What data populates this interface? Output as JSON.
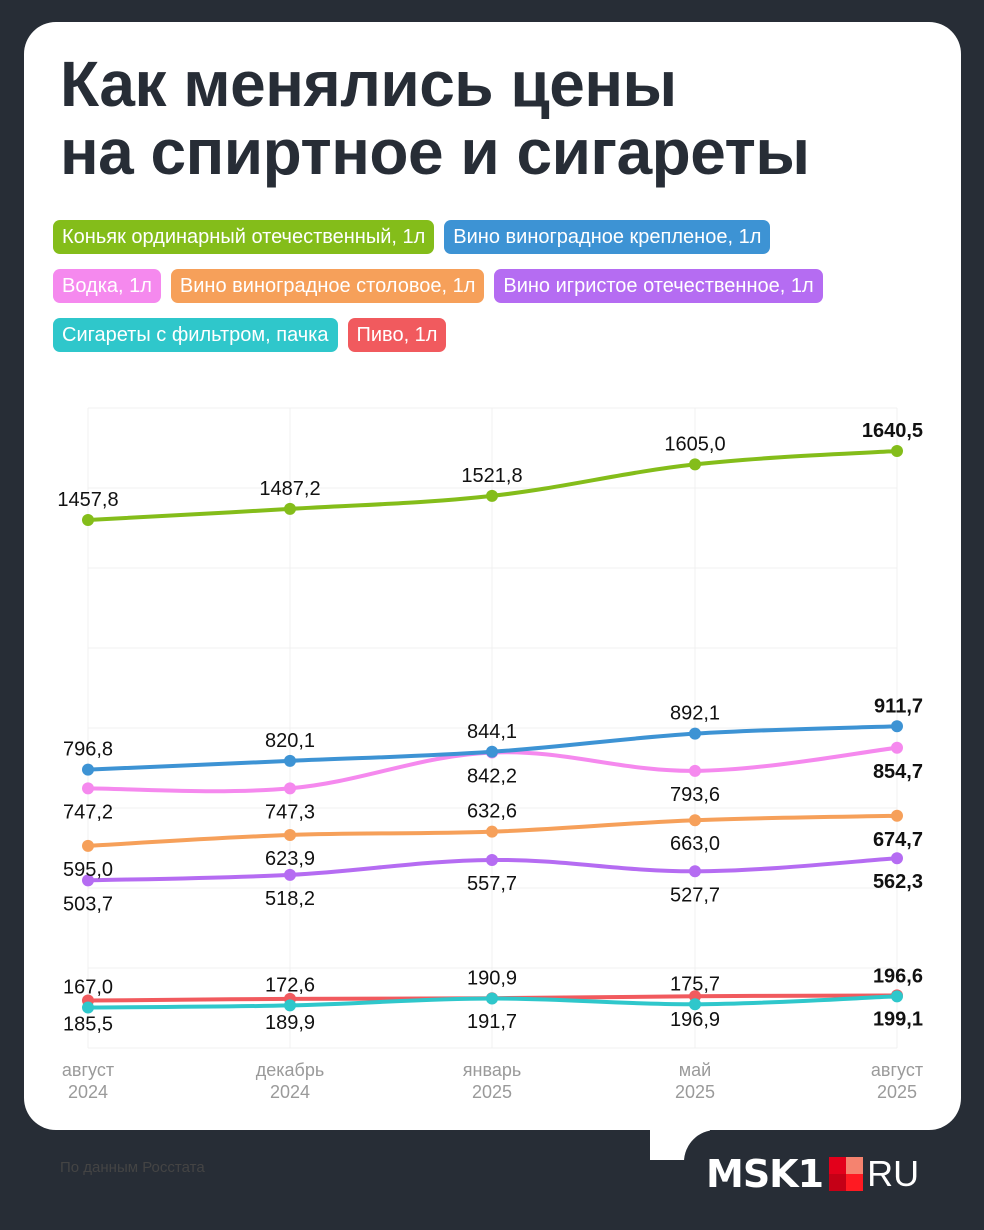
{
  "title_line1": "Как менялись цены",
  "title_line2": "на спиртное и сигареты",
  "legend": [
    {
      "label": "Коньяк ординарный отечественный, 1л",
      "color": "#84bd1a"
    },
    {
      "label": "Вино виноградное крепленое, 1л",
      "color": "#3d93d4"
    },
    {
      "label": "Водка, 1л",
      "color": "#f589ee"
    },
    {
      "label": "Вино виноградное столовое, 1л",
      "color": "#f6a05a"
    },
    {
      "label": "Вино игристое отечественное, 1л",
      "color": "#b56cf2"
    },
    {
      "label": "Сигареты с фильтром, пачка",
      "color": "#2fc7cb"
    },
    {
      "label": "Пиво, 1л",
      "color": "#f15a5e"
    }
  ],
  "source": "По данным Росстата",
  "logo": {
    "main": "MSK1",
    "suffix": "RU"
  },
  "chart_data": {
    "type": "line",
    "title": "Как менялись цены на спиртное и сигареты",
    "categories": [
      "август 2024",
      "декабрь 2024",
      "январь 2025",
      "май 2025",
      "август 2025"
    ],
    "x_ticks": [
      [
        "август",
        "2024"
      ],
      [
        "декабрь",
        "2024"
      ],
      [
        "январь",
        "2025"
      ],
      [
        "май",
        "2025"
      ],
      [
        "август",
        "2025"
      ]
    ],
    "xlabel": "",
    "ylabel": "",
    "grid": true,
    "legend_position": "top",
    "series": [
      {
        "name": "Коньяк ординарный отечественный, 1л",
        "color": "#84bd1a",
        "values": [
          1457.8,
          1487.2,
          1521.8,
          1605.0,
          1640.5
        ],
        "labels": [
          "1457,8",
          "1487,2",
          "1521,8",
          "1605,0",
          "1640,5"
        ],
        "label_pos": [
          "above",
          "above",
          "above",
          "above",
          "above"
        ]
      },
      {
        "name": "Вино виноградное крепленое, 1л",
        "color": "#3d93d4",
        "values": [
          796.8,
          820.1,
          844.1,
          892.1,
          911.7
        ],
        "labels": [
          "796,8",
          "820,1",
          "844,1",
          "892,1",
          "911,7"
        ],
        "label_pos": [
          "above",
          "above",
          "above",
          "above",
          "above"
        ]
      },
      {
        "name": "Водка, 1л",
        "color": "#f589ee",
        "values": [
          747.2,
          747.3,
          842.2,
          793.6,
          854.7
        ],
        "labels": [
          "747,2",
          "747,3",
          "842,2",
          "793,6",
          "854,7"
        ],
        "label_pos": [
          "below",
          "below",
          "below",
          "below",
          "below"
        ]
      },
      {
        "name": "Вино виноградное столовое, 1л",
        "color": "#f6a05a",
        "values": [
          595.0,
          623.9,
          632.6,
          663.0,
          674.7
        ],
        "labels": [
          "595,0",
          "623,9",
          "632,6",
          "663,0",
          "674,7"
        ],
        "label_pos": [
          "below",
          "below",
          "above",
          "below",
          "below"
        ]
      },
      {
        "name": "Вино игристое отечественное, 1л",
        "color": "#b56cf2",
        "values": [
          503.7,
          518.2,
          557.7,
          527.7,
          562.3
        ],
        "labels": [
          "503,7",
          "518,2",
          "557,7",
          "527,7",
          "562,3"
        ],
        "label_pos": [
          "below",
          "below",
          "below",
          "below",
          "below"
        ]
      },
      {
        "name": "Сигареты с фильтром, пачка",
        "color": "#2fc7cb",
        "values": [
          167.0,
          172.6,
          190.9,
          175.7,
          196.6
        ],
        "labels": [
          "167,0",
          "172,6",
          "190,9",
          "175,7",
          "196,6"
        ],
        "label_pos": [
          "above",
          "above",
          "above",
          "above",
          "above"
        ]
      },
      {
        "name": "Пиво, 1л",
        "color": "#f15a5e",
        "values": [
          185.5,
          189.9,
          191.7,
          196.9,
          199.1
        ],
        "labels": [
          "185,5",
          "189,9",
          "191,7",
          "196,9",
          "199,1"
        ],
        "label_pos": [
          "below",
          "below",
          "below",
          "below",
          "below"
        ]
      }
    ]
  }
}
